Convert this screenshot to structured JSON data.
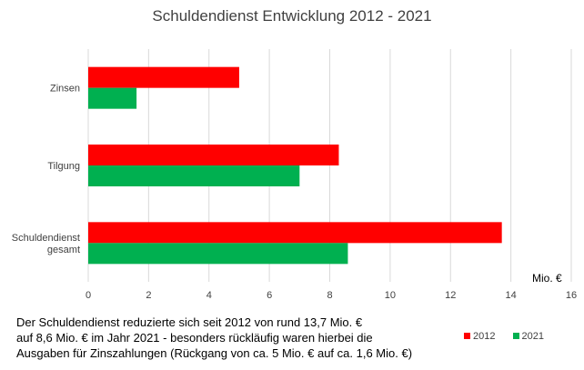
{
  "chart_data": {
    "type": "bar",
    "orientation": "horizontal",
    "title": "Schuldendienst Entwicklung 2012 - 2021",
    "unit": "Mio. €",
    "categories": [
      [
        "Zinsen"
      ],
      [
        "Tilgung"
      ],
      [
        "Schuldendienst",
        "gesamt"
      ]
    ],
    "series": [
      {
        "name": "2012",
        "color": "#ff0000",
        "values": [
          5.0,
          8.3,
          13.7
        ]
      },
      {
        "name": "2021",
        "color": "#00b050",
        "values": [
          1.6,
          7.0,
          8.6
        ]
      }
    ],
    "xlim": [
      0,
      16
    ],
    "xticks": [
      0,
      2,
      4,
      6,
      8,
      10,
      12,
      14,
      16
    ],
    "grid": true,
    "legend_position": "bottom-right"
  },
  "caption_lines": [
    "Der Schuldendienst reduzierte sich seit 2012 von rund 13,7 Mio. €",
    "auf 8,6 Mio. €  im Jahr 2021 - besonders rückläufig waren hierbei die",
    "Ausgaben für Zinszahlungen (Rückgang von ca. 5 Mio. € auf ca. 1,6 Mio. €)"
  ]
}
